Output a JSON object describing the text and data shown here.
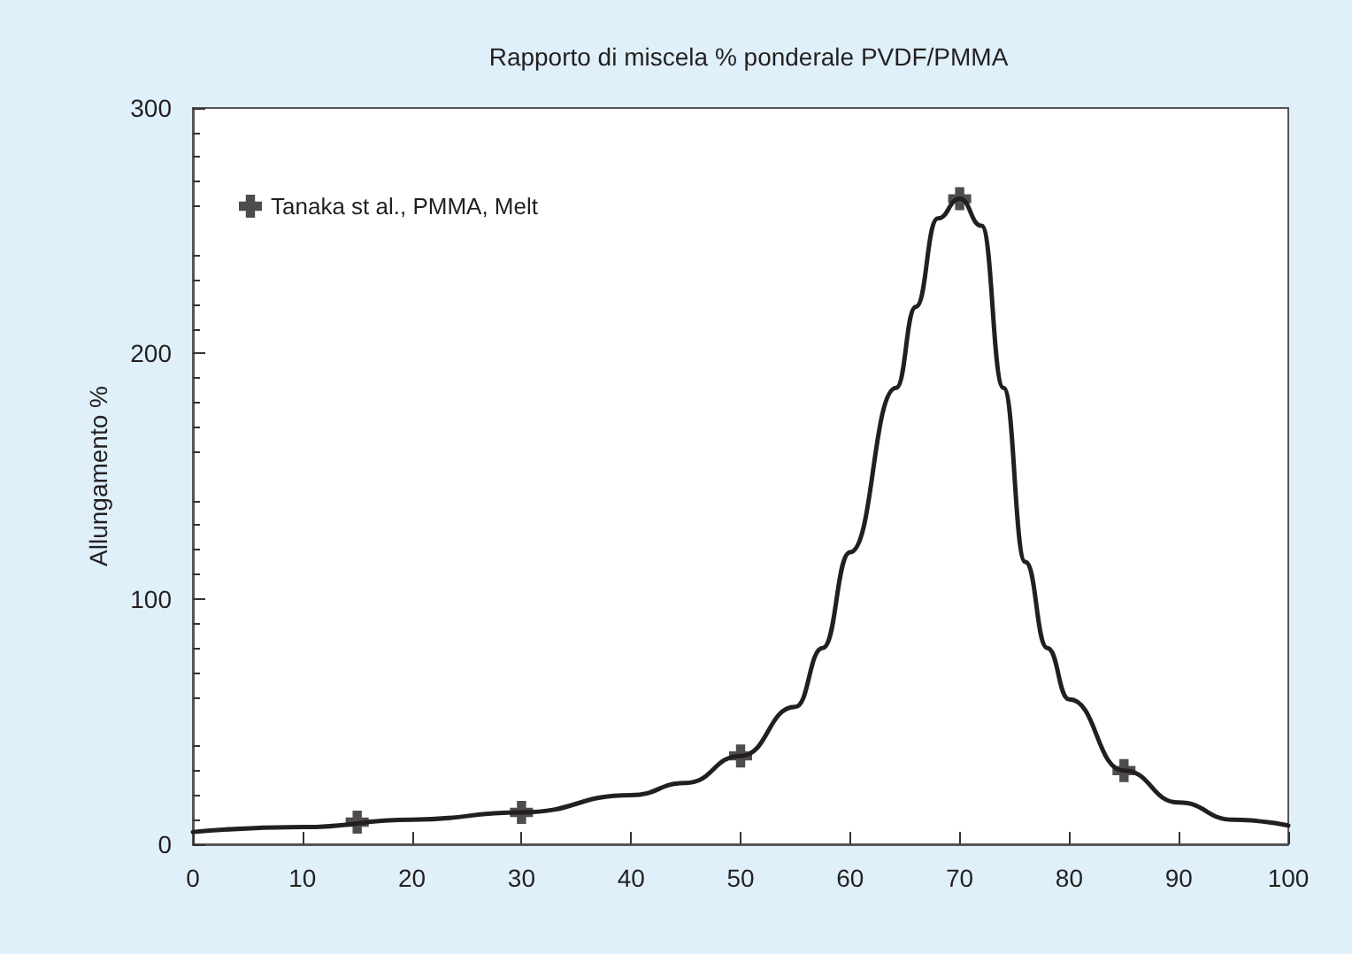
{
  "chart_data": {
    "type": "scatter",
    "title": "Rapporto di miscela % ponderale PVDF/PMMA",
    "ylabel": "Allungamento %",
    "xlim": [
      0,
      100
    ],
    "xticks": [
      0,
      10,
      20,
      30,
      40,
      50,
      60,
      70,
      80,
      90,
      100
    ],
    "ylim": [
      0,
      300
    ],
    "yticks": [
      0,
      100,
      200,
      300
    ],
    "grid": false,
    "legend": "top left",
    "marker": "cross",
    "series": [
      {
        "name": "Tanaka st al., PMMA, Melt",
        "color": "#231f20",
        "x": [
          15,
          30,
          50,
          70,
          85
        ],
        "values": [
          9,
          13,
          36,
          263,
          30
        ]
      },
      {
        "type": "line",
        "color": "#231f20",
        "line_style": "solid",
        "marker": "none",
        "x": [
          0,
          10,
          20,
          30,
          40,
          45,
          50,
          55,
          57.5,
          60,
          64.2,
          66,
          68,
          70,
          72,
          74,
          76,
          78,
          80,
          85,
          90,
          95,
          100
        ],
        "values": [
          5,
          7,
          10,
          13,
          20,
          25,
          36,
          56,
          80,
          119,
          186,
          219,
          255,
          263,
          252,
          186,
          115,
          80,
          59,
          30,
          17,
          10,
          7.6
        ]
      }
    ]
  }
}
